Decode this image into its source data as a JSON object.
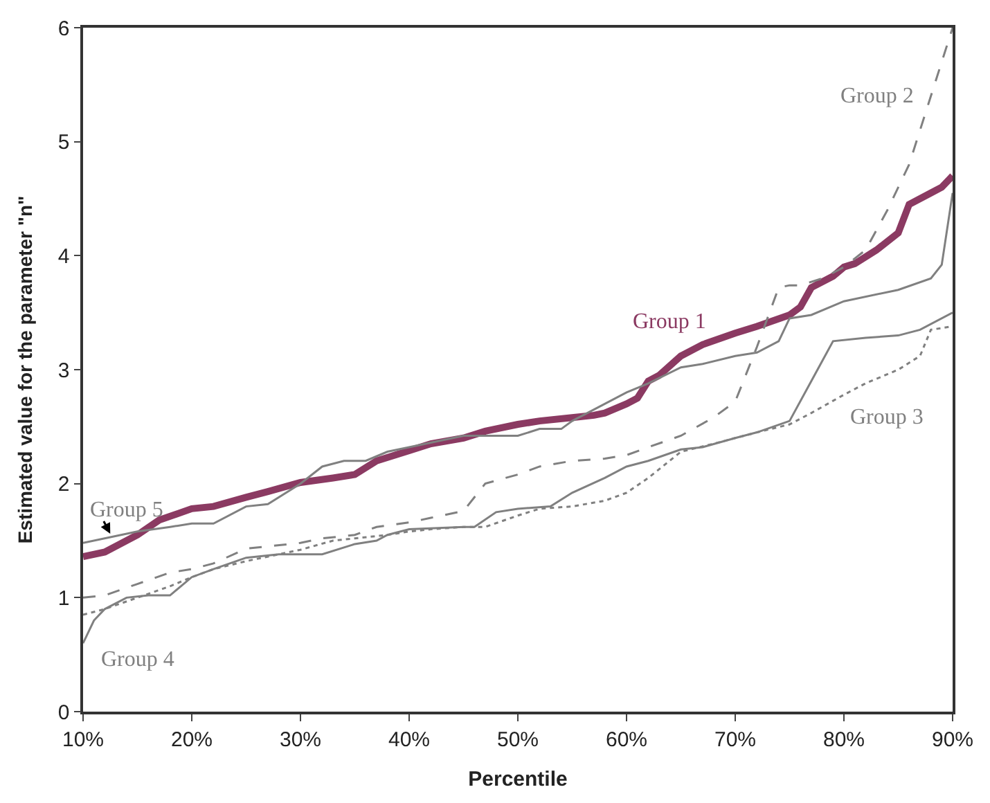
{
  "chart_data": {
    "type": "line",
    "xlabel": "Percentile",
    "ylabel": "Estimated value for the parameter \"n\"",
    "xlim": [
      10,
      90
    ],
    "xticks": [
      {
        "value": 10,
        "label": "10%"
      },
      {
        "value": 20,
        "label": "20%"
      },
      {
        "value": 30,
        "label": "30%"
      },
      {
        "value": 40,
        "label": "40%"
      },
      {
        "value": 50,
        "label": "50%"
      },
      {
        "value": 60,
        "label": "60%"
      },
      {
        "value": 70,
        "label": "70%"
      },
      {
        "value": 80,
        "label": "80%"
      },
      {
        "value": 90,
        "label": "90%"
      }
    ],
    "ylim": [
      0,
      6
    ],
    "yticks": [
      0,
      1,
      2,
      3,
      4,
      5,
      6
    ],
    "legend": false,
    "marker": "none",
    "series": [
      {
        "name": "Group 1",
        "color": "#8b3a62",
        "line_style": "solid",
        "x": [
          10,
          12,
          15,
          17,
          20,
          22,
          25,
          27,
          30,
          33,
          35,
          37,
          40,
          42,
          45,
          47,
          50,
          52,
          55,
          57,
          58,
          60,
          61,
          62,
          63,
          65,
          67,
          70,
          72,
          75,
          76,
          77,
          79,
          80,
          81,
          83,
          85,
          86,
          88,
          89,
          90
        ],
        "values": [
          1.36,
          1.4,
          1.55,
          1.68,
          1.78,
          1.8,
          1.88,
          1.93,
          2.01,
          2.05,
          2.08,
          2.2,
          2.29,
          2.35,
          2.4,
          2.46,
          2.52,
          2.55,
          2.58,
          2.6,
          2.62,
          2.7,
          2.75,
          2.9,
          2.95,
          3.12,
          3.22,
          3.32,
          3.38,
          3.48,
          3.55,
          3.72,
          3.82,
          3.9,
          3.93,
          4.05,
          4.2,
          4.45,
          4.55,
          4.6,
          4.7
        ]
      },
      {
        "name": "Group 2",
        "color": "#808080",
        "line_style": "dashed",
        "x": [
          10,
          12,
          15,
          18,
          20,
          22,
          25,
          27,
          30,
          32,
          35,
          37,
          40,
          42,
          45,
          47,
          50,
          52,
          55,
          58,
          60,
          62,
          65,
          68,
          70,
          72,
          74,
          75,
          76,
          78,
          80,
          82,
          84,
          86,
          88,
          90
        ],
        "values": [
          1.0,
          1.02,
          1.12,
          1.22,
          1.25,
          1.3,
          1.43,
          1.45,
          1.48,
          1.52,
          1.55,
          1.62,
          1.66,
          1.7,
          1.76,
          2.0,
          2.08,
          2.15,
          2.2,
          2.22,
          2.25,
          2.32,
          2.42,
          2.58,
          2.72,
          3.2,
          3.72,
          3.74,
          3.74,
          3.8,
          3.9,
          4.05,
          4.4,
          4.8,
          5.4,
          6.0
        ]
      },
      {
        "name": "Group 3",
        "color": "#808080",
        "line_style": "dotted",
        "x": [
          10,
          12,
          15,
          18,
          20,
          22,
          25,
          28,
          30,
          33,
          35,
          38,
          40,
          42,
          45,
          47,
          50,
          52,
          55,
          58,
          60,
          62,
          65,
          68,
          70,
          72,
          75,
          77,
          80,
          82,
          85,
          87,
          88,
          90
        ],
        "values": [
          0.85,
          0.9,
          1.0,
          1.1,
          1.18,
          1.25,
          1.32,
          1.38,
          1.42,
          1.5,
          1.52,
          1.55,
          1.58,
          1.6,
          1.62,
          1.62,
          1.72,
          1.78,
          1.8,
          1.85,
          1.92,
          2.05,
          2.28,
          2.35,
          2.4,
          2.45,
          2.52,
          2.62,
          2.78,
          2.88,
          3.0,
          3.12,
          3.35,
          3.38
        ]
      },
      {
        "name": "Group 4",
        "color": "#808080",
        "line_style": "solid",
        "x": [
          10,
          11,
          12,
          14,
          16,
          18,
          20,
          22,
          25,
          28,
          30,
          32,
          35,
          37,
          38,
          40,
          45,
          46,
          48,
          50,
          53,
          55,
          58,
          60,
          62,
          65,
          67,
          70,
          72,
          75,
          77,
          79,
          82,
          85,
          87,
          90
        ],
        "values": [
          0.6,
          0.8,
          0.9,
          1.0,
          1.02,
          1.02,
          1.18,
          1.25,
          1.35,
          1.38,
          1.38,
          1.38,
          1.47,
          1.5,
          1.55,
          1.6,
          1.62,
          1.62,
          1.75,
          1.78,
          1.8,
          1.92,
          2.05,
          2.15,
          2.2,
          2.3,
          2.32,
          2.4,
          2.45,
          2.55,
          2.9,
          3.25,
          3.28,
          3.3,
          3.35,
          3.5
        ]
      },
      {
        "name": "Group 5",
        "color": "#808080",
        "line_style": "solid",
        "x": [
          10,
          15,
          18,
          20,
          22,
          25,
          27,
          30,
          32,
          34,
          36,
          38,
          40,
          45,
          50,
          52,
          54,
          55,
          57,
          60,
          62,
          65,
          67,
          70,
          72,
          74,
          75,
          77,
          80,
          85,
          88,
          89,
          90
        ],
        "values": [
          1.48,
          1.58,
          1.62,
          1.65,
          1.65,
          1.8,
          1.82,
          2.0,
          2.15,
          2.2,
          2.2,
          2.28,
          2.32,
          2.42,
          2.42,
          2.48,
          2.48,
          2.55,
          2.65,
          2.8,
          2.88,
          3.02,
          3.05,
          3.12,
          3.15,
          3.25,
          3.45,
          3.48,
          3.6,
          3.7,
          3.8,
          3.92,
          4.55
        ]
      }
    ]
  }
}
